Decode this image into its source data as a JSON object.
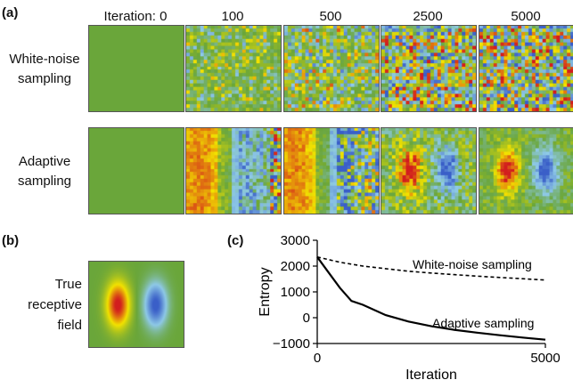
{
  "panel_a": {
    "label": "(a)",
    "iteration_labels": [
      "Iteration: 0",
      "100",
      "500",
      "2500",
      "5000"
    ],
    "rows": [
      {
        "label_line1": "White-noise",
        "label_line2": "sampling"
      },
      {
        "label_line1": "Adaptive",
        "label_line2": "sampling"
      }
    ]
  },
  "panel_b": {
    "label": "(b)",
    "text_line1": "True",
    "text_line2": "receptive",
    "text_line3": "field"
  },
  "panel_c": {
    "label": "(c)"
  },
  "colors": {
    "green": "#6aa63a",
    "yellow": "#f2e200",
    "red": "#d21e1e",
    "blue": "#3a5fc8",
    "light_blue": "#8ec9e6"
  },
  "chart_data": {
    "type": "line",
    "xlabel": "Iteration",
    "ylabel": "Entropy",
    "xlim": [
      0,
      5000
    ],
    "ylim": [
      -1000,
      3000
    ],
    "x_ticks": [
      "0",
      "5000"
    ],
    "y_ticks": [
      "3000",
      "2000",
      "1000",
      "0",
      "−1000"
    ],
    "series": [
      {
        "name": "White-noise sampling",
        "style": "dashed",
        "x": [
          0,
          500,
          1000,
          1500,
          2000,
          2500,
          3000,
          3500,
          4000,
          4500,
          5000
        ],
        "y": [
          2350,
          2150,
          2000,
          1900,
          1800,
          1730,
          1670,
          1610,
          1560,
          1510,
          1460
        ]
      },
      {
        "name": "Adaptive sampling",
        "style": "solid",
        "x": [
          0,
          250,
          500,
          750,
          1000,
          1500,
          2000,
          2500,
          3000,
          3500,
          4000,
          4500,
          5000
        ],
        "y": [
          2350,
          1750,
          1150,
          650,
          500,
          100,
          -150,
          -330,
          -470,
          -580,
          -680,
          -770,
          -850
        ]
      }
    ]
  }
}
